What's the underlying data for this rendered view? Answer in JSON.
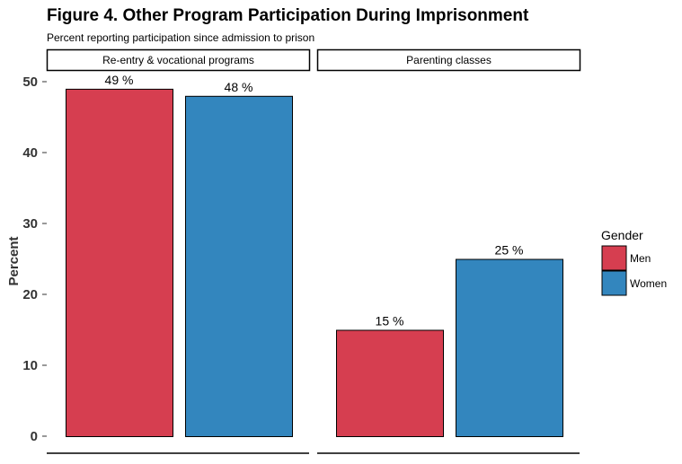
{
  "chart_data": {
    "type": "bar",
    "title": "Figure 4. Other Program Participation During Imprisonment",
    "subtitle": "Percent reporting participation since admission to prison",
    "ylabel": "Percent",
    "ylim": [
      0,
      50
    ],
    "yticks": [
      0,
      10,
      20,
      30,
      40,
      50
    ],
    "legend": {
      "title": "Gender",
      "placement": "right",
      "entries": [
        "Men",
        "Women"
      ]
    },
    "grid": false,
    "colors": {
      "Men": "#d63e50",
      "Women": "#3386be"
    },
    "facets": [
      {
        "label": "Re-entry & vocational programs",
        "bars": [
          {
            "group": "Men",
            "value": 49,
            "label": "49 %"
          },
          {
            "group": "Women",
            "value": 48,
            "label": "48 %"
          }
        ]
      },
      {
        "label": "Parenting classes",
        "bars": [
          {
            "group": "Men",
            "value": 15,
            "label": "15 %"
          },
          {
            "group": "Women",
            "value": 25,
            "label": "25 %"
          }
        ]
      }
    ]
  }
}
